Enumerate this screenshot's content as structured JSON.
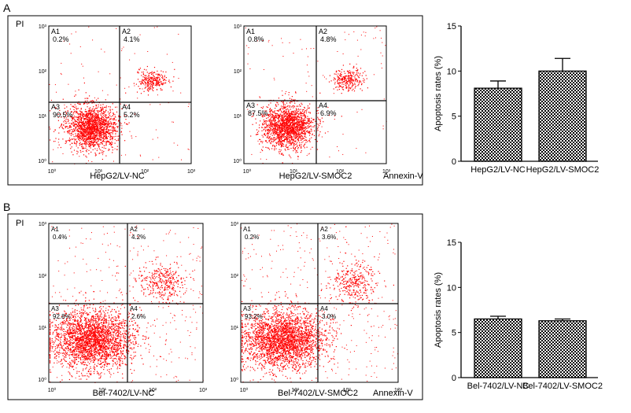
{
  "panels": [
    {
      "letter": "A",
      "y_axis_title": "PI",
      "x_axis_title": "Annexin-V",
      "flow_plots": [
        {
          "sample": "HepG2/LV-NC",
          "quadrants": [
            {
              "id": "A1",
              "percent": "0.2%"
            },
            {
              "id": "A2",
              "percent": "4.1%"
            },
            {
              "id": "A3",
              "percent": "90.5%"
            },
            {
              "id": "A4",
              "percent": "5.2%"
            }
          ]
        },
        {
          "sample": "HepG2/LV-SMOC2",
          "quadrants": [
            {
              "id": "A1",
              "percent": "0.8%"
            },
            {
              "id": "A2",
              "percent": "4.8%"
            },
            {
              "id": "A3",
              "percent": "87.5%"
            },
            {
              "id": "A4",
              "percent": "6.9%"
            }
          ]
        }
      ],
      "flow_ticks": [
        "10⁰",
        "10¹",
        "10²",
        "10³"
      ]
    },
    {
      "letter": "B",
      "y_axis_title": "PI",
      "x_axis_title": "Annexin-V",
      "flow_plots": [
        {
          "sample": "Bel-7402/LV-NC",
          "quadrants": [
            {
              "id": "A1",
              "percent": "0.4%"
            },
            {
              "id": "A2",
              "percent": "4.2%"
            },
            {
              "id": "A3",
              "percent": "92.8%"
            },
            {
              "id": "A4",
              "percent": "2.6%"
            }
          ]
        },
        {
          "sample": "Bel-7402/LV-SMOC2",
          "quadrants": [
            {
              "id": "A1",
              "percent": "0.2%"
            },
            {
              "id": "A2",
              "percent": "3.6%"
            },
            {
              "id": "A3",
              "percent": "93.2%"
            },
            {
              "id": "A4",
              "percent": "3.0%"
            }
          ]
        }
      ],
      "flow_ticks": [
        "10⁰",
        "10¹",
        "10²",
        "10³"
      ]
    }
  ],
  "colors": {
    "dots": "#ff0000",
    "bar_pattern": "#000000"
  },
  "chart_data": [
    {
      "type": "bar",
      "categories": [
        "HepG2/LV-NC",
        "HepG2/LV-SMOC2"
      ],
      "values": [
        8.1,
        10.0
      ],
      "errors": [
        0.8,
        1.4
      ],
      "ylabel": "Apoptosis rates (%)",
      "ylim": [
        0,
        15
      ],
      "yticks": [
        0,
        5,
        10,
        15
      ]
    },
    {
      "type": "bar",
      "categories": [
        "Bel-7402/LV-NC",
        "Bel-7402/LV-SMOC2"
      ],
      "values": [
        6.5,
        6.3
      ],
      "errors": [
        0.3,
        0.2
      ],
      "ylabel": "Apoptosis rates (%)",
      "ylim": [
        0,
        15
      ],
      "yticks": [
        0,
        5,
        10,
        15
      ]
    }
  ]
}
